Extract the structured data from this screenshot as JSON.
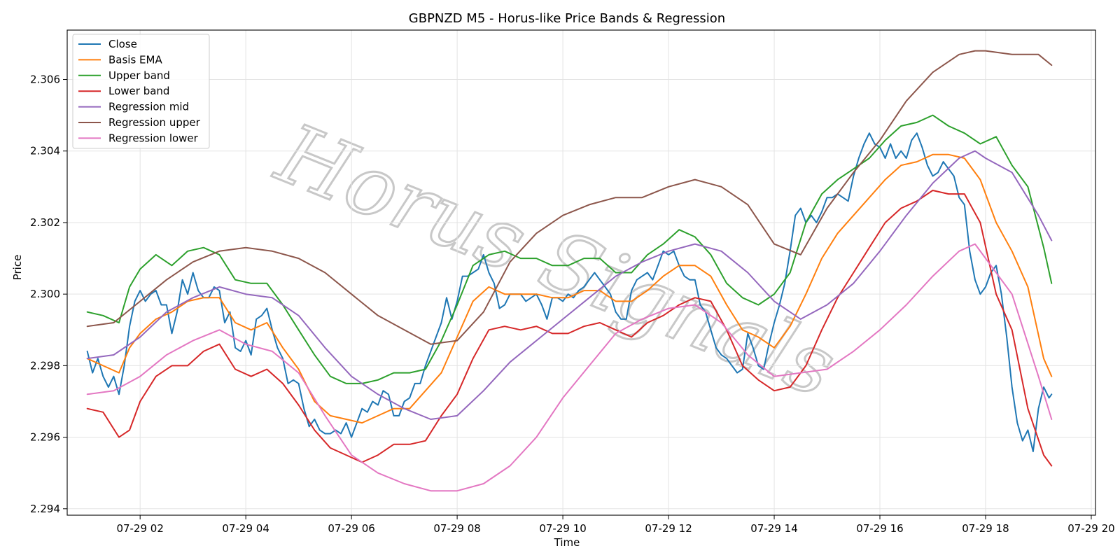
{
  "chart_data": {
    "type": "line",
    "title": "GBPNZD M5 - Horus-like Price Bands & Regression",
    "xlabel": "Time",
    "ylabel": "Price",
    "xlim": [
      0.62,
      20.08
    ],
    "ylim": [
      2.29382,
      2.30738
    ],
    "x_unit": "hours since 07-29 00:00",
    "x_ticks": [
      2,
      4,
      6,
      8,
      10,
      12,
      14,
      16,
      18,
      20
    ],
    "x_tick_labels": [
      "07-29 02",
      "07-29 04",
      "07-29 06",
      "07-29 08",
      "07-29 10",
      "07-29 12",
      "07-29 14",
      "07-29 16",
      "07-29 18",
      "07-29 20"
    ],
    "y_ticks": [
      2.294,
      2.296,
      2.298,
      2.3,
      2.302,
      2.304,
      2.306
    ],
    "y_tick_labels": [
      "2.294",
      "2.296",
      "2.298",
      "2.300",
      "2.302",
      "2.304",
      "2.306"
    ],
    "grid": true,
    "legend_position": "top-left",
    "watermark": "Horus Signals",
    "series": [
      {
        "name": "Close",
        "color": "#1f77b4",
        "x": [
          1.0,
          1.1,
          1.2,
          1.3,
          1.4,
          1.5,
          1.6,
          1.7,
          1.8,
          1.9,
          2.0,
          2.1,
          2.2,
          2.3,
          2.4,
          2.5,
          2.6,
          2.7,
          2.8,
          2.9,
          3.0,
          3.1,
          3.2,
          3.3,
          3.4,
          3.5,
          3.6,
          3.7,
          3.8,
          3.9,
          4.0,
          4.1,
          4.2,
          4.3,
          4.4,
          4.5,
          4.6,
          4.7,
          4.8,
          4.9,
          5.0,
          5.1,
          5.2,
          5.3,
          5.4,
          5.5,
          5.6,
          5.7,
          5.8,
          5.9,
          6.0,
          6.1,
          6.2,
          6.3,
          6.4,
          6.5,
          6.6,
          6.7,
          6.8,
          6.9,
          7.0,
          7.1,
          7.2,
          7.3,
          7.4,
          7.5,
          7.6,
          7.7,
          7.8,
          7.9,
          8.0,
          8.1,
          8.2,
          8.3,
          8.4,
          8.5,
          8.6,
          8.7,
          8.8,
          8.9,
          9.0,
          9.1,
          9.2,
          9.3,
          9.4,
          9.5,
          9.6,
          9.7,
          9.8,
          9.9,
          10.0,
          10.1,
          10.2,
          10.3,
          10.4,
          10.5,
          10.6,
          10.7,
          10.8,
          10.9,
          11.0,
          11.1,
          11.2,
          11.3,
          11.4,
          11.5,
          11.6,
          11.7,
          11.8,
          11.9,
          12.0,
          12.1,
          12.2,
          12.3,
          12.4,
          12.5,
          12.6,
          12.7,
          12.8,
          12.9,
          13.0,
          13.1,
          13.2,
          13.3,
          13.4,
          13.5,
          13.6,
          13.7,
          13.8,
          13.9,
          14.0,
          14.1,
          14.2,
          14.3,
          14.4,
          14.5,
          14.6,
          14.7,
          14.8,
          14.9,
          15.0,
          15.1,
          15.2,
          15.3,
          15.4,
          15.5,
          15.6,
          15.7,
          15.8,
          15.9,
          16.0,
          16.1,
          16.2,
          16.3,
          16.4,
          16.5,
          16.6,
          16.7,
          16.8,
          16.9,
          17.0,
          17.1,
          17.2,
          17.3,
          17.4,
          17.5,
          17.6,
          17.7,
          17.8,
          17.9,
          18.0,
          18.1,
          18.2,
          18.3,
          18.4,
          18.5,
          18.6,
          18.7,
          18.8,
          18.9,
          19.0,
          19.1,
          19.2,
          19.25
        ],
        "y": [
          2.2984,
          2.2978,
          2.2982,
          2.2977,
          2.2974,
          2.2977,
          2.2972,
          2.298,
          2.2991,
          2.2998,
          2.3001,
          2.2998,
          2.3,
          2.3001,
          2.2997,
          2.2997,
          2.2989,
          2.2995,
          2.3004,
          2.3,
          2.3006,
          2.3001,
          2.2999,
          2.2999,
          2.3002,
          2.3001,
          2.2992,
          2.2995,
          2.2985,
          2.2984,
          2.2987,
          2.2983,
          2.2993,
          2.2994,
          2.2996,
          2.299,
          2.2985,
          2.2982,
          2.2975,
          2.2976,
          2.2975,
          2.2968,
          2.2963,
          2.2965,
          2.2962,
          2.2961,
          2.2961,
          2.2962,
          2.2961,
          2.2964,
          2.296,
          2.2964,
          2.2968,
          2.2967,
          2.297,
          2.2969,
          2.2973,
          2.2972,
          2.2966,
          2.2966,
          2.297,
          2.2971,
          2.2975,
          2.2975,
          2.298,
          2.2984,
          2.2988,
          2.2992,
          2.2999,
          2.2993,
          2.2998,
          2.3005,
          2.3005,
          2.3006,
          2.3007,
          2.3011,
          2.3006,
          2.3003,
          2.2996,
          2.2997,
          2.3,
          2.3,
          2.3,
          2.2998,
          2.2999,
          2.3,
          2.2997,
          2.2993,
          2.2999,
          2.2999,
          2.2998,
          2.3,
          2.2999,
          2.3001,
          2.3002,
          2.3004,
          2.3006,
          2.3004,
          2.3002,
          2.3,
          2.2995,
          2.2993,
          2.2993,
          2.3001,
          2.3004,
          2.3005,
          2.3006,
          2.3004,
          2.3008,
          2.3012,
          2.3011,
          2.3012,
          2.3008,
          2.3005,
          2.3004,
          2.3004,
          2.2997,
          2.2995,
          2.299,
          2.2985,
          2.2983,
          2.2982,
          2.298,
          2.2978,
          2.2979,
          2.2989,
          2.2985,
          2.298,
          2.2979,
          2.2986,
          2.2992,
          2.2997,
          2.3003,
          2.3012,
          2.3022,
          2.3024,
          2.302,
          2.3022,
          2.302,
          2.3023,
          2.3027,
          2.3027,
          2.3028,
          2.3027,
          2.3026,
          2.3033,
          2.3038,
          2.3042,
          2.3045,
          2.3042,
          2.3041,
          2.3038,
          2.3042,
          2.3038,
          2.304,
          2.3038,
          2.3043,
          2.3045,
          2.3041,
          2.3036,
          2.3033,
          2.3034,
          2.3037,
          2.3035,
          2.3033,
          2.3027,
          2.3025,
          2.3012,
          2.3004,
          2.3,
          2.3002,
          2.3006,
          2.3008,
          2.3,
          2.2988,
          2.2974,
          2.2964,
          2.2959,
          2.2962,
          2.2956,
          2.2968,
          2.2974,
          2.2971,
          2.2972
        ]
      },
      {
        "name": "Basis EMA",
        "color": "#ff7f0e",
        "x": [
          1.0,
          1.3,
          1.6,
          1.8,
          2.0,
          2.3,
          2.6,
          2.9,
          3.2,
          3.5,
          3.8,
          4.1,
          4.4,
          4.7,
          5.0,
          5.3,
          5.6,
          5.9,
          6.2,
          6.5,
          6.8,
          7.1,
          7.4,
          7.7,
          8.0,
          8.3,
          8.6,
          8.9,
          9.2,
          9.5,
          9.8,
          10.1,
          10.4,
          10.7,
          11.0,
          11.3,
          11.6,
          11.9,
          12.2,
          12.5,
          12.8,
          13.1,
          13.4,
          13.7,
          14.0,
          14.3,
          14.6,
          14.9,
          15.2,
          15.5,
          15.8,
          16.1,
          16.4,
          16.7,
          17.0,
          17.3,
          17.6,
          17.9,
          18.2,
          18.5,
          18.8,
          19.1,
          19.25
        ],
        "y": [
          2.2982,
          2.298,
          2.2978,
          2.2985,
          2.2989,
          2.2993,
          2.2995,
          2.2998,
          2.2999,
          2.2999,
          2.2992,
          2.299,
          2.2992,
          2.2985,
          2.2979,
          2.297,
          2.2966,
          2.2965,
          2.2964,
          2.2966,
          2.2968,
          2.2968,
          2.2973,
          2.2978,
          2.2988,
          2.2998,
          2.3002,
          2.3,
          2.3,
          2.3,
          2.2999,
          2.2999,
          2.3001,
          2.3001,
          2.2998,
          2.2998,
          2.3001,
          2.3005,
          2.3008,
          2.3008,
          2.3005,
          2.2997,
          2.299,
          2.2988,
          2.2985,
          2.2991,
          2.3,
          2.301,
          2.3017,
          2.3022,
          2.3027,
          2.3032,
          2.3036,
          2.3037,
          2.3039,
          2.3039,
          2.3038,
          2.3032,
          2.302,
          2.3012,
          2.3002,
          2.2982,
          2.2977
        ]
      },
      {
        "name": "Upper band",
        "color": "#2ca02c",
        "x": [
          1.0,
          1.3,
          1.6,
          1.8,
          2.0,
          2.3,
          2.6,
          2.9,
          3.2,
          3.5,
          3.8,
          4.1,
          4.4,
          4.7,
          5.0,
          5.3,
          5.6,
          5.9,
          6.2,
          6.5,
          6.8,
          7.1,
          7.4,
          7.7,
          8.0,
          8.3,
          8.6,
          8.9,
          9.2,
          9.5,
          9.8,
          10.1,
          10.4,
          10.7,
          11.0,
          11.3,
          11.6,
          11.9,
          12.2,
          12.5,
          12.8,
          13.1,
          13.4,
          13.7,
          14.0,
          14.3,
          14.6,
          14.9,
          15.2,
          15.5,
          15.8,
          16.1,
          16.4,
          16.7,
          17.0,
          17.3,
          17.6,
          17.9,
          18.2,
          18.5,
          18.8,
          19.1,
          19.25
        ],
        "y": [
          2.2995,
          2.2994,
          2.2992,
          2.3002,
          2.3007,
          2.3011,
          2.3008,
          2.3012,
          2.3013,
          2.3011,
          2.3004,
          2.3003,
          2.3003,
          2.2997,
          2.299,
          2.2983,
          2.2977,
          2.2975,
          2.2975,
          2.2976,
          2.2978,
          2.2978,
          2.2979,
          2.2987,
          2.2997,
          2.3008,
          2.3011,
          2.3012,
          2.301,
          2.301,
          2.3008,
          2.3008,
          2.301,
          2.301,
          2.3006,
          2.3006,
          2.3011,
          2.3014,
          2.3018,
          2.3016,
          2.3011,
          2.3003,
          2.2999,
          2.2997,
          2.3,
          2.3006,
          2.302,
          2.3028,
          2.3032,
          2.3035,
          2.3038,
          2.3043,
          2.3047,
          2.3048,
          2.305,
          2.3047,
          2.3045,
          2.3042,
          2.3044,
          2.3036,
          2.303,
          2.3013,
          2.3003
        ]
      },
      {
        "name": "Lower band",
        "color": "#d62728",
        "x": [
          1.0,
          1.3,
          1.6,
          1.8,
          2.0,
          2.3,
          2.6,
          2.9,
          3.2,
          3.5,
          3.8,
          4.1,
          4.4,
          4.7,
          5.0,
          5.3,
          5.6,
          5.9,
          6.2,
          6.5,
          6.8,
          7.1,
          7.4,
          7.7,
          8.0,
          8.3,
          8.6,
          8.9,
          9.2,
          9.5,
          9.8,
          10.1,
          10.4,
          10.7,
          11.0,
          11.3,
          11.6,
          11.9,
          12.2,
          12.5,
          12.8,
          13.1,
          13.4,
          13.7,
          14.0,
          14.3,
          14.6,
          14.9,
          15.2,
          15.5,
          15.8,
          16.1,
          16.4,
          16.7,
          17.0,
          17.3,
          17.6,
          17.9,
          18.2,
          18.5,
          18.8,
          19.1,
          19.25
        ],
        "y": [
          2.2968,
          2.2967,
          2.296,
          2.2962,
          2.297,
          2.2977,
          2.298,
          2.298,
          2.2984,
          2.2986,
          2.2979,
          2.2977,
          2.2979,
          2.2975,
          2.2969,
          2.2962,
          2.2957,
          2.2955,
          2.2953,
          2.2955,
          2.2958,
          2.2958,
          2.2959,
          2.2966,
          2.2972,
          2.2982,
          2.299,
          2.2991,
          2.299,
          2.2991,
          2.2989,
          2.2989,
          2.2991,
          2.2992,
          2.299,
          2.2988,
          2.2992,
          2.2994,
          2.2997,
          2.2999,
          2.2998,
          2.299,
          2.298,
          2.2976,
          2.2973,
          2.2974,
          2.298,
          2.299,
          2.2999,
          2.3006,
          2.3013,
          2.302,
          2.3024,
          2.3026,
          2.3029,
          2.3028,
          2.3028,
          2.302,
          2.3,
          2.299,
          2.2968,
          2.2955,
          2.2952
        ]
      },
      {
        "name": "Regression mid",
        "color": "#9467bd",
        "x": [
          1.0,
          1.5,
          2.0,
          2.5,
          3.0,
          3.5,
          4.0,
          4.5,
          5.0,
          5.5,
          6.0,
          6.5,
          7.0,
          7.5,
          8.0,
          8.5,
          9.0,
          9.5,
          10.0,
          10.5,
          11.0,
          11.5,
          12.0,
          12.5,
          13.0,
          13.5,
          14.0,
          14.5,
          15.0,
          15.5,
          16.0,
          16.5,
          17.0,
          17.5,
          17.8,
          18.0,
          18.5,
          19.0,
          19.25
        ],
        "y": [
          2.2982,
          2.2983,
          2.2988,
          2.2995,
          2.2999,
          2.3002,
          2.3,
          2.2999,
          2.2994,
          2.2985,
          2.2977,
          2.2972,
          2.2968,
          2.2965,
          2.2966,
          2.2973,
          2.2981,
          2.2987,
          2.2993,
          2.2999,
          2.3005,
          2.3009,
          2.3012,
          2.3014,
          2.3012,
          2.3006,
          2.2998,
          2.2993,
          2.2997,
          2.3003,
          2.3012,
          2.3022,
          2.3031,
          2.3038,
          2.304,
          2.3038,
          2.3034,
          2.3022,
          2.3015
        ]
      },
      {
        "name": "Regression upper",
        "color": "#8c564b",
        "x": [
          1.0,
          1.5,
          2.0,
          2.5,
          3.0,
          3.5,
          4.0,
          4.5,
          5.0,
          5.5,
          6.0,
          6.5,
          7.0,
          7.5,
          8.0,
          8.5,
          9.0,
          9.5,
          10.0,
          10.5,
          11.0,
          11.5,
          12.0,
          12.5,
          13.0,
          13.5,
          14.0,
          14.5,
          15.0,
          15.5,
          16.0,
          16.5,
          17.0,
          17.5,
          17.8,
          18.0,
          18.5,
          18.8,
          19.0,
          19.25
        ],
        "y": [
          2.2991,
          2.2992,
          2.2998,
          2.3004,
          2.3009,
          2.3012,
          2.3013,
          2.3012,
          2.301,
          2.3006,
          2.3,
          2.2994,
          2.299,
          2.2986,
          2.2987,
          2.2995,
          2.3009,
          2.3017,
          2.3022,
          2.3025,
          2.3027,
          2.3027,
          2.303,
          2.3032,
          2.303,
          2.3025,
          2.3014,
          2.3011,
          2.3024,
          2.3034,
          2.3043,
          2.3054,
          2.3062,
          2.3067,
          2.3068,
          2.3068,
          2.3067,
          2.3067,
          2.3067,
          2.3064
        ]
      },
      {
        "name": "Regression lower",
        "color": "#e377c2",
        "x": [
          1.0,
          1.5,
          2.0,
          2.5,
          3.0,
          3.5,
          4.0,
          4.5,
          5.0,
          5.5,
          6.0,
          6.5,
          7.0,
          7.5,
          8.0,
          8.5,
          9.0,
          9.5,
          10.0,
          10.5,
          11.0,
          11.5,
          12.0,
          12.5,
          13.0,
          13.5,
          14.0,
          14.5,
          15.0,
          15.5,
          16.0,
          16.5,
          17.0,
          17.5,
          17.8,
          18.0,
          18.5,
          19.0,
          19.25
        ],
        "y": [
          2.2972,
          2.2973,
          2.2977,
          2.2983,
          2.2987,
          2.299,
          2.2986,
          2.2984,
          2.2978,
          2.2966,
          2.2955,
          2.295,
          2.2947,
          2.2945,
          2.2945,
          2.2947,
          2.2952,
          2.296,
          2.2971,
          2.298,
          2.2989,
          2.2993,
          2.2996,
          2.2997,
          2.2992,
          2.2983,
          2.2977,
          2.2978,
          2.2979,
          2.2984,
          2.299,
          2.2997,
          2.3005,
          2.3012,
          2.3014,
          2.301,
          2.3,
          2.2977,
          2.2965
        ]
      }
    ]
  }
}
